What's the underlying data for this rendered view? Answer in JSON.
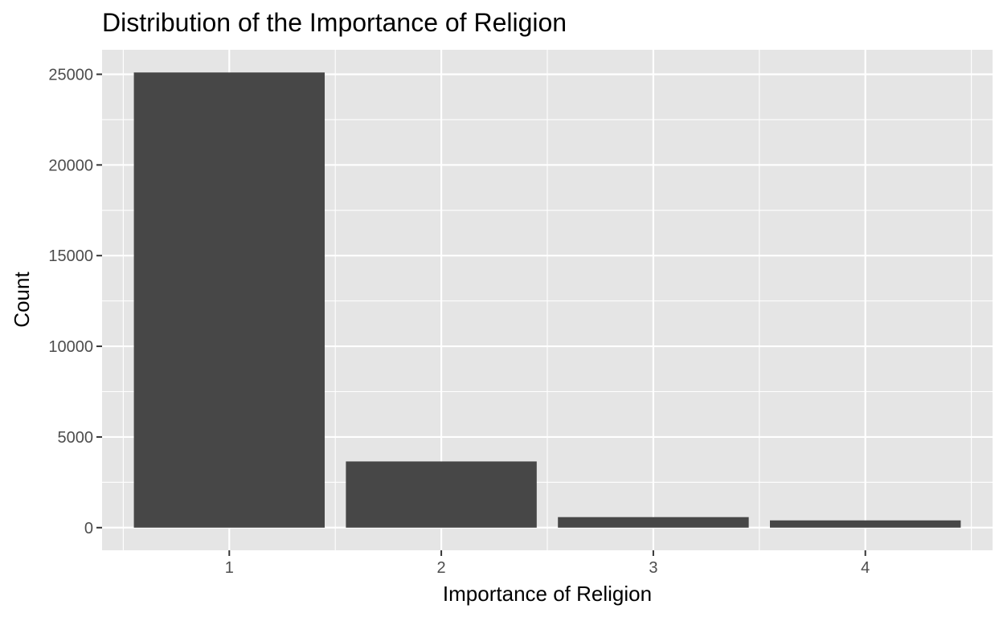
{
  "chart_data": {
    "type": "bar",
    "title": "Distribution of the Importance of Religion",
    "xlabel": "Importance of Religion",
    "ylabel": "Count",
    "categories": [
      "1",
      "2",
      "3",
      "4"
    ],
    "values": [
      25100,
      3650,
      580,
      400
    ],
    "ylim": [
      -1250,
      26350
    ],
    "yticks": [
      0,
      5000,
      10000,
      15000,
      20000,
      25000
    ],
    "ytick_labels": [
      "0",
      "5000",
      "10000",
      "15000",
      "20000",
      "25000"
    ],
    "grid": true,
    "bar_color": "#474747",
    "panel_color": "#e5e5e5"
  }
}
